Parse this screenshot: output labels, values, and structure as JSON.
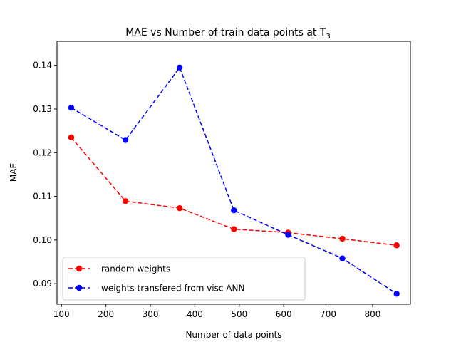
{
  "chart_data": {
    "type": "line",
    "title": "MAE vs Number of train data points at T",
    "title_subscript": "3",
    "xlabel": "Number of data points",
    "ylabel": "MAE",
    "xlim": [
      90,
      885
    ],
    "ylim": [
      0.0853,
      0.1455
    ],
    "xticks": [
      100,
      200,
      300,
      400,
      500,
      600,
      700,
      800
    ],
    "yticks": [
      0.09,
      0.1,
      0.11,
      0.12,
      0.13,
      0.14
    ],
    "ytick_labels": [
      "0.09",
      "0.10",
      "0.11",
      "0.12",
      "0.13",
      "0.14"
    ],
    "grid": false,
    "legend_position": "lower-left",
    "series": [
      {
        "name": "random weights",
        "color": "#ff0000",
        "linestyle": "dashed",
        "marker": "circle",
        "x": [
          122,
          244,
          366,
          488,
          610,
          732,
          854
        ],
        "y": [
          0.1235,
          0.1089,
          0.1073,
          0.1025,
          0.1017,
          0.1003,
          0.0988
        ]
      },
      {
        "name": "weights transfered from visc ANN",
        "color": "#0000ff",
        "linestyle": "dashed",
        "marker": "circle",
        "x": [
          122,
          244,
          366,
          488,
          610,
          732,
          854
        ],
        "y": [
          0.1303,
          0.1229,
          0.1395,
          0.1068,
          0.1012,
          0.0958,
          0.0877
        ]
      }
    ]
  }
}
